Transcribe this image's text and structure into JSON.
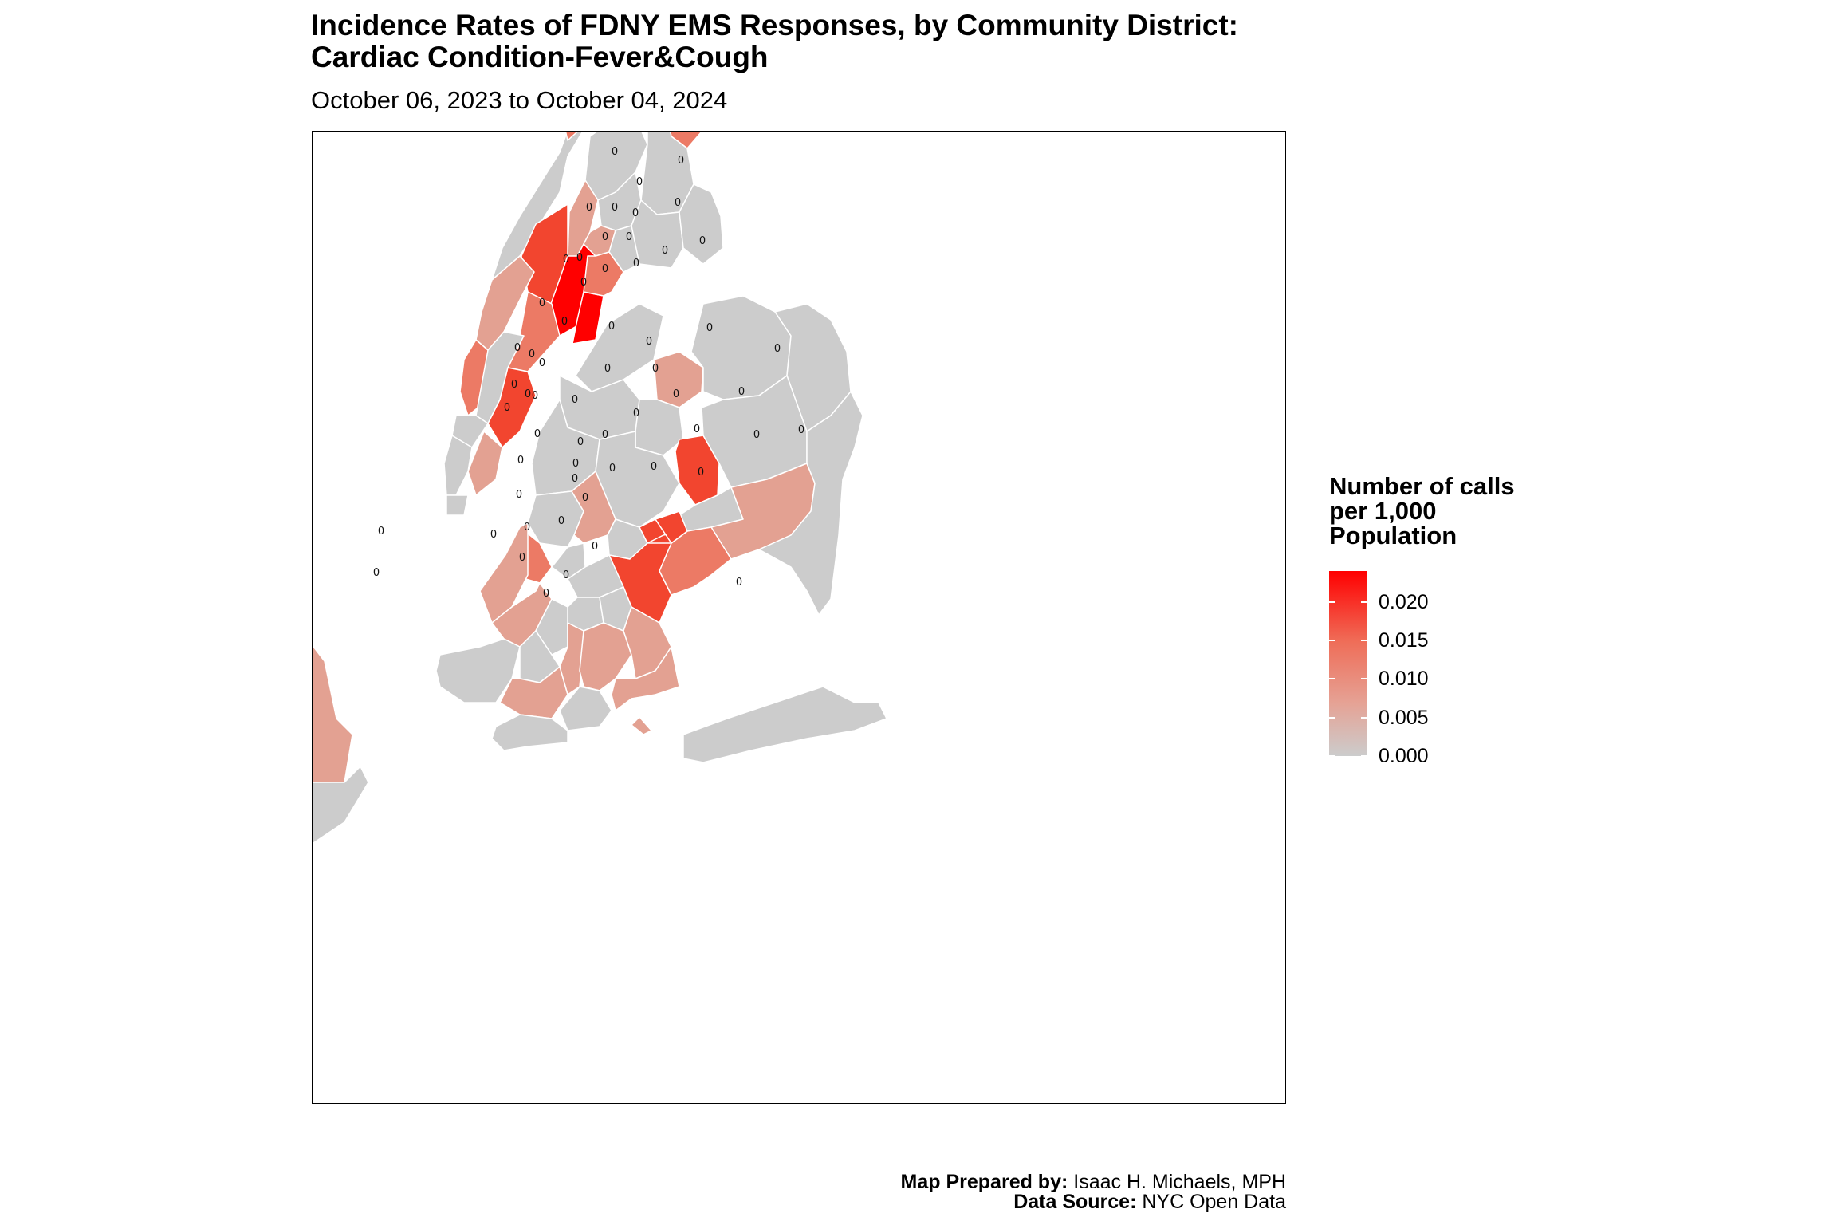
{
  "title": "Incidence Rates of FDNY EMS Responses, by Community District:\nCardiac Condition-Fever&Cough",
  "subtitle": "October 06, 2023 to October 04, 2024",
  "legend": {
    "title": "Number of calls\nper 1,000\nPopulation",
    "ticks": [
      "0.020",
      "0.015",
      "0.010",
      "0.005",
      "0.000"
    ],
    "range": [
      0,
      0.024
    ],
    "low_color": "#cccccc",
    "high_color": "#ff0000"
  },
  "credits": {
    "prepared_label": "Map Prepared by:",
    "prepared_value": " Isaac H. Michaels, MPH",
    "source_label": "Data Source:",
    "source_value": " NYC Open Data"
  },
  "map": {
    "district_value_label": "0",
    "colors": {
      "zero": "#cccccc",
      "low": "#e3a192",
      "mid": "#ec7a65",
      "high": "#f2452f",
      "max": "#ff0000"
    }
  }
}
